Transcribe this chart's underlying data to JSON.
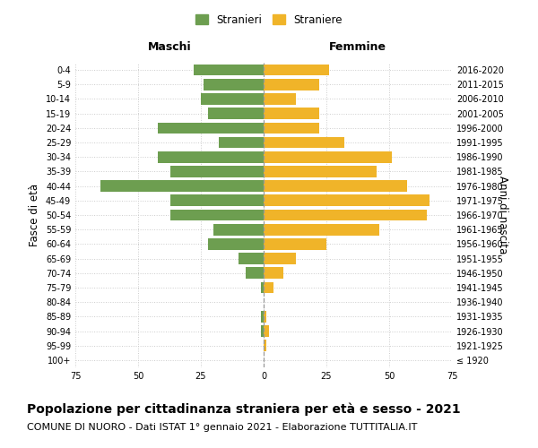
{
  "age_groups": [
    "100+",
    "95-99",
    "90-94",
    "85-89",
    "80-84",
    "75-79",
    "70-74",
    "65-69",
    "60-64",
    "55-59",
    "50-54",
    "45-49",
    "40-44",
    "35-39",
    "30-34",
    "25-29",
    "20-24",
    "15-19",
    "10-14",
    "5-9",
    "0-4"
  ],
  "birth_years": [
    "≤ 1920",
    "1921-1925",
    "1926-1930",
    "1931-1935",
    "1936-1940",
    "1941-1945",
    "1946-1950",
    "1951-1955",
    "1956-1960",
    "1961-1965",
    "1966-1970",
    "1971-1975",
    "1976-1980",
    "1981-1985",
    "1986-1990",
    "1991-1995",
    "1996-2000",
    "2001-2005",
    "2006-2010",
    "2011-2015",
    "2016-2020"
  ],
  "maschi": [
    0,
    0,
    1,
    1,
    0,
    1,
    7,
    10,
    22,
    20,
    37,
    37,
    65,
    37,
    42,
    18,
    42,
    22,
    25,
    24,
    28
  ],
  "femmine": [
    0,
    1,
    2,
    1,
    0,
    4,
    8,
    13,
    25,
    46,
    65,
    66,
    57,
    45,
    51,
    32,
    22,
    22,
    13,
    22,
    26
  ],
  "maschi_color": "#6d9e50",
  "femmine_color": "#f0b429",
  "background_color": "#ffffff",
  "grid_color": "#cccccc",
  "xlim": 75,
  "title": "Popolazione per cittadinanza straniera per età e sesso - 2021",
  "subtitle": "COMUNE DI NUORO - Dati ISTAT 1° gennaio 2021 - Elaborazione TUTTITALIA.IT",
  "ylabel_left": "Fasce di età",
  "ylabel_right": "Anni di nascita",
  "header_left": "Maschi",
  "header_right": "Femmine",
  "legend_maschi": "Stranieri",
  "legend_femmine": "Straniere",
  "title_fontsize": 10,
  "subtitle_fontsize": 8,
  "tick_fontsize": 7,
  "label_fontsize": 8.5,
  "header_fontsize": 9
}
